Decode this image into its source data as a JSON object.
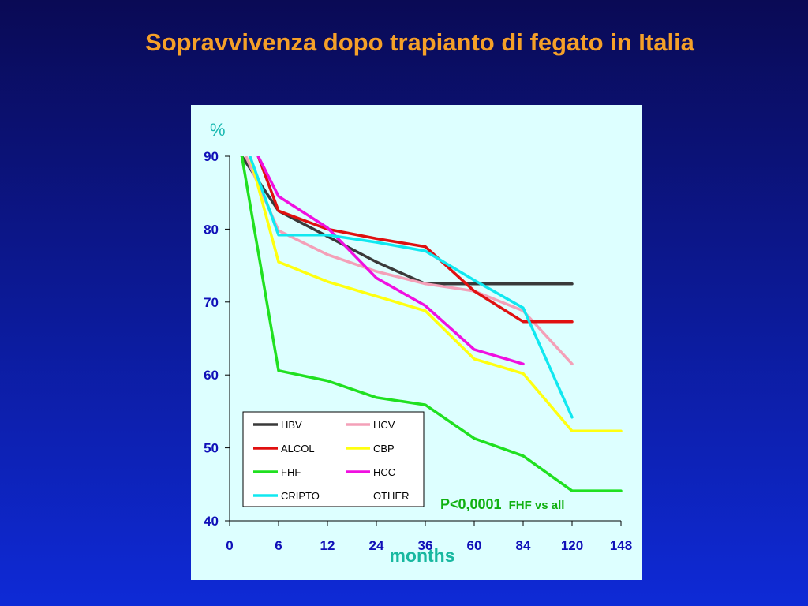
{
  "title": "Sopravvivenza dopo trapianto di fegato in Italia",
  "chart_data": {
    "type": "line",
    "ylabel": "%",
    "xlabel": "months",
    "x_ticks": [
      "0",
      "6",
      "12",
      "24",
      "36",
      "60",
      "84",
      "120",
      "148"
    ],
    "y_ticks": [
      40,
      50,
      60,
      70,
      80,
      90
    ],
    "ylim": [
      40,
      90
    ],
    "grid": false,
    "legend_placement": "bottom-left",
    "annotation": {
      "main": "P<0,0001",
      "sub": "FHF vs all"
    },
    "series": [
      {
        "name": "HBV",
        "color": "#3a3a3a",
        "x": [
          1.5,
          6,
          12,
          24,
          36,
          60,
          84,
          120
        ],
        "y": [
          90,
          82.5,
          79,
          75.5,
          72.5,
          72.5,
          72.5,
          72.5
        ]
      },
      {
        "name": "HCV",
        "color": "#f4a0b8",
        "x": [
          2,
          6,
          12,
          24,
          36,
          60,
          84,
          120
        ],
        "y": [
          90,
          79.8,
          76.5,
          74.2,
          72.5,
          71.5,
          68.8,
          61.5
        ]
      },
      {
        "name": "ALCOL",
        "color": "#e01010",
        "x": [
          3.5,
          6,
          12,
          24,
          36,
          60,
          84,
          120
        ],
        "y": [
          90,
          82.5,
          80,
          78.7,
          77.6,
          71.5,
          67.3,
          67.3
        ]
      },
      {
        "name": "CBP",
        "color": "#ffff10",
        "x": [
          2.5,
          6,
          12,
          24,
          36,
          60,
          84,
          120,
          148
        ],
        "y": [
          90,
          75.5,
          72.8,
          70.8,
          68.8,
          62.2,
          60.2,
          52.3,
          52.3
        ]
      },
      {
        "name": "FHF",
        "color": "#20e020",
        "x": [
          1.5,
          6,
          12,
          24,
          36,
          60,
          84,
          120,
          148
        ],
        "y": [
          90,
          60.6,
          59.2,
          56.9,
          55.9,
          51.3,
          48.9,
          44.1,
          44.1
        ]
      },
      {
        "name": "HCC",
        "color": "#f010e0",
        "x": [
          3.5,
          6,
          12,
          24,
          36,
          60,
          84
        ],
        "y": [
          90,
          84.5,
          80.2,
          73.3,
          69.5,
          63.5,
          61.5
        ]
      },
      {
        "name": "CRIPTO",
        "color": "#10e8f0",
        "x": [
          2.5,
          6,
          12,
          24,
          36,
          60,
          84,
          120
        ],
        "y": [
          90,
          79.2,
          79.2,
          78.2,
          77,
          73,
          69.2,
          54.2
        ]
      },
      {
        "name": "OTHER",
        "color": "",
        "x": [],
        "y": []
      }
    ]
  }
}
